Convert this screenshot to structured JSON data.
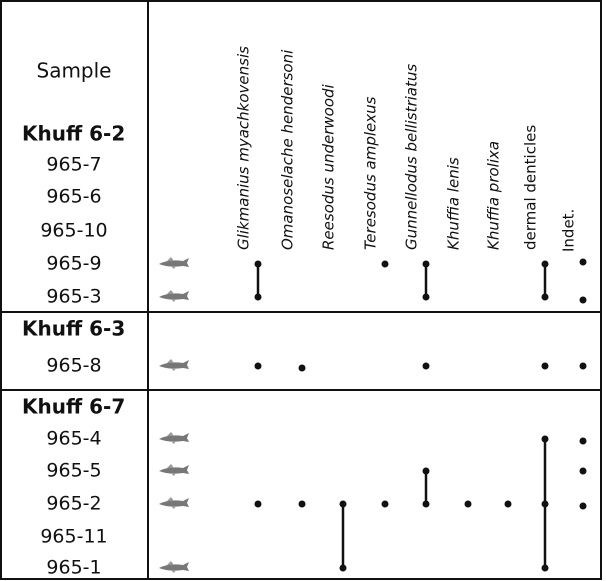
{
  "header": {
    "sample": "Sample",
    "taxa": [
      "Glikmanius myachkovensis",
      "Omanoselache hendersoni",
      "Reesodus underwoodi",
      "Teresodus amplexus",
      "Gunnellodus bellistriatus",
      "Khuffia lenis",
      "Khuffia prolixa",
      "dermal denticles",
      "Indet."
    ]
  },
  "groups": [
    {
      "name": "Khuff 6-2",
      "samples": [
        "965-7",
        "965-6",
        "965-10",
        "965-9",
        "965-3"
      ]
    },
    {
      "name": "Khuff 6-3",
      "samples": [
        "965-8"
      ]
    },
    {
      "name": "Khuff 6-7",
      "samples": [
        "965-4",
        "965-5",
        "965-2",
        "965-11",
        "965-1"
      ]
    }
  ]
}
